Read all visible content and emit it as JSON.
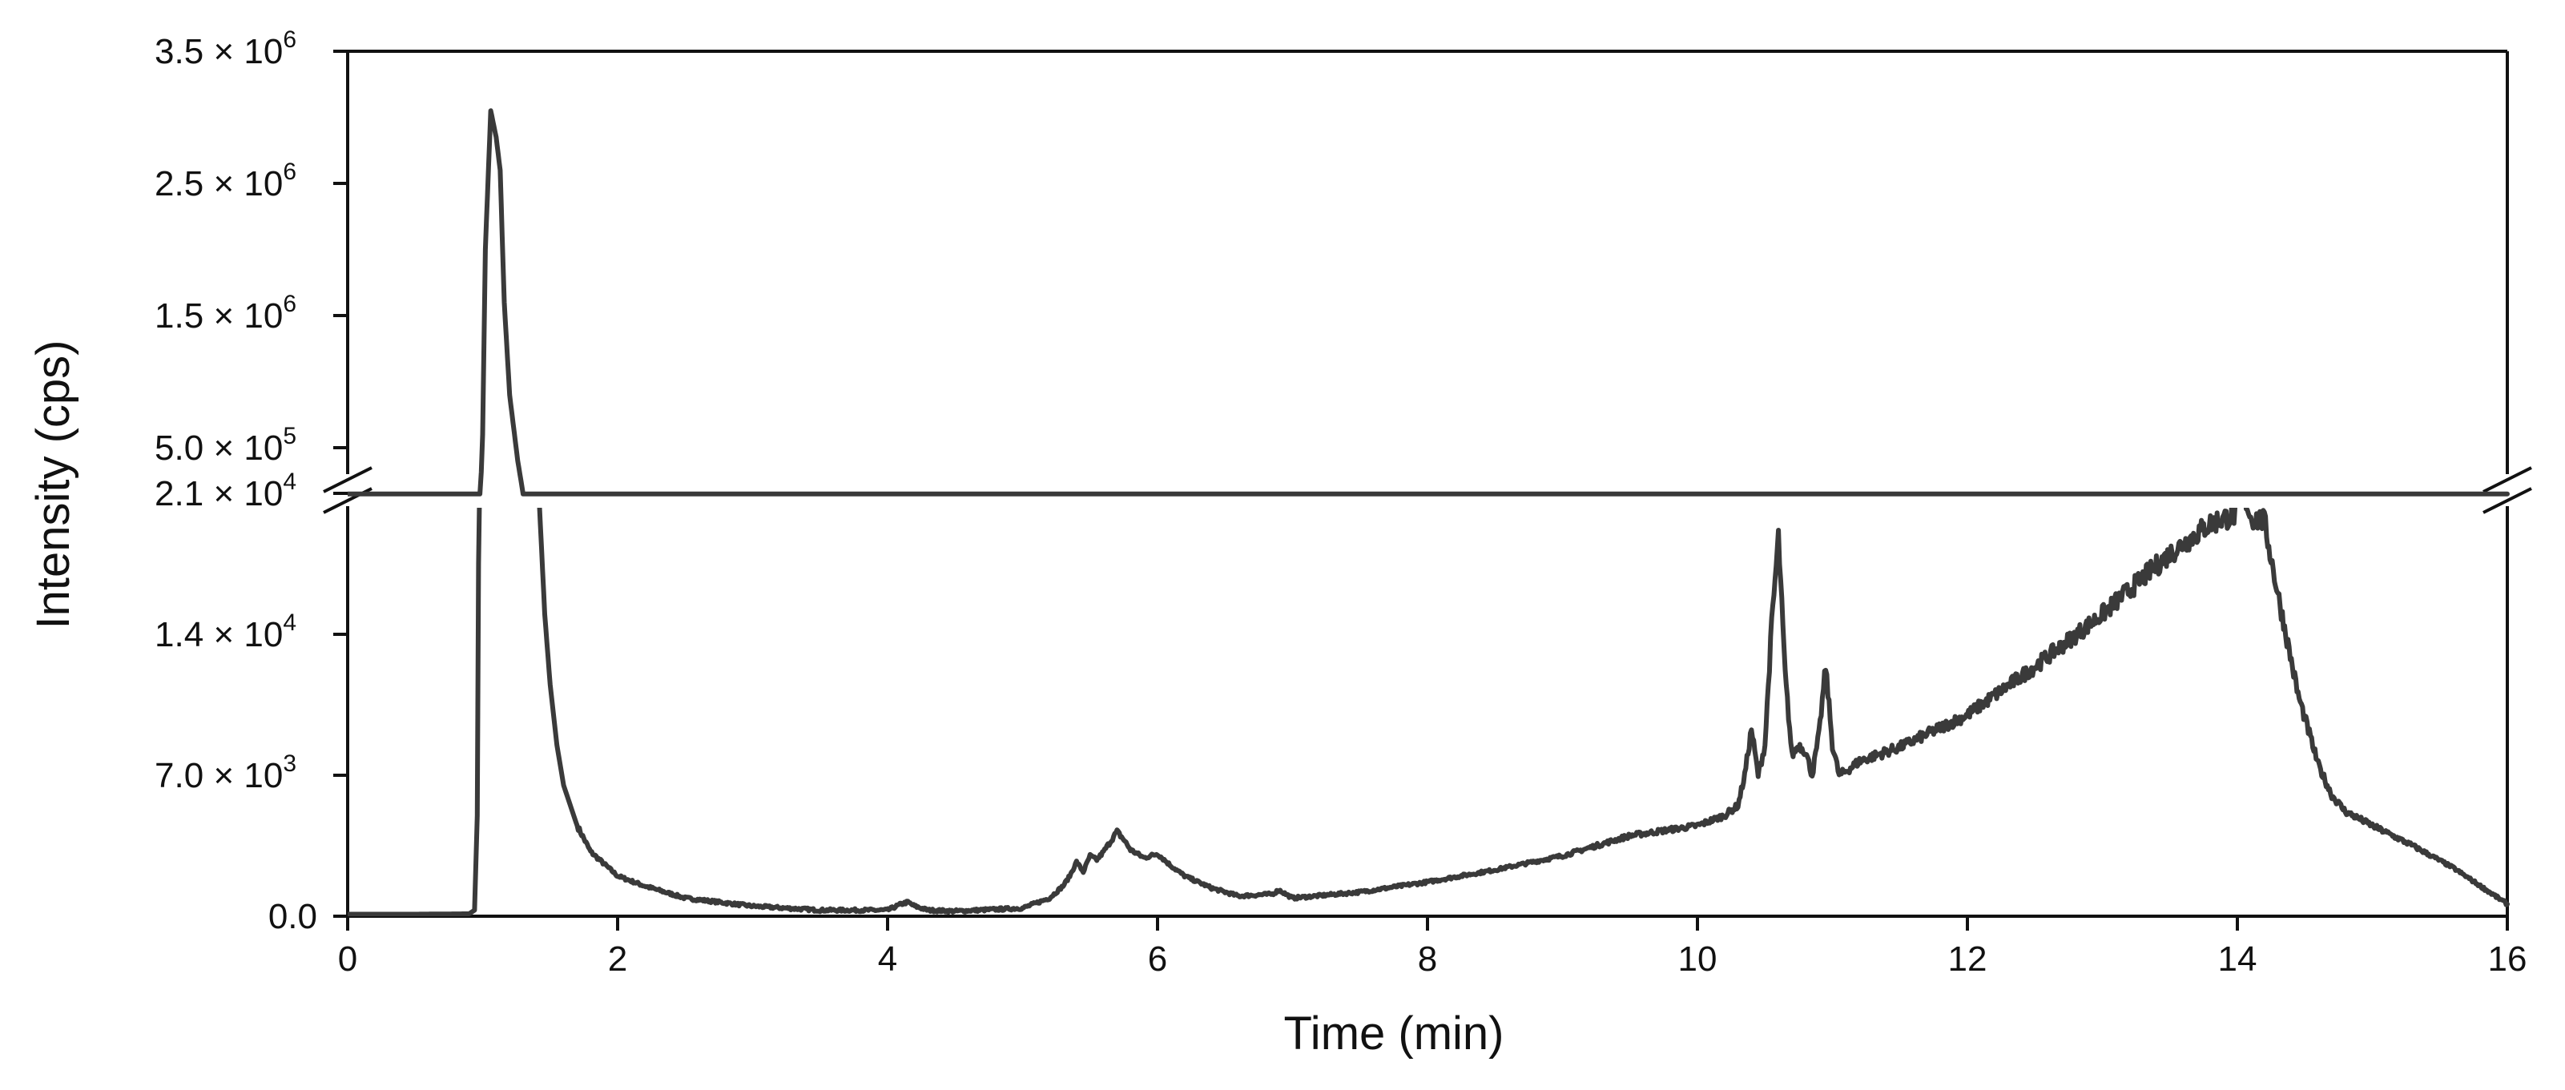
{
  "chart_data": {
    "type": "line",
    "title": "",
    "xlabel": "Time (min)",
    "ylabel": "Intensity (cps)",
    "xlim": [
      0,
      16
    ],
    "x_ticks": [
      "0",
      "2",
      "4",
      "6",
      "8",
      "10",
      "12",
      "14",
      "16"
    ],
    "y_axis_break": true,
    "y_upper": {
      "range": [
        300000,
        3500000
      ],
      "ticks": [
        {
          "value": 500000,
          "mantissa": "5.0",
          "exponent": "5"
        },
        {
          "value": 1500000,
          "mantissa": "1.5",
          "exponent": "6"
        },
        {
          "value": 2500000,
          "mantissa": "2.5",
          "exponent": "6"
        },
        {
          "value": 3500000,
          "mantissa": "3.5",
          "exponent": "6"
        }
      ]
    },
    "y_lower": {
      "range": [
        0,
        21000
      ],
      "ticks": [
        {
          "value": 0,
          "mantissa": "0.0",
          "exponent": ""
        },
        {
          "value": 7000,
          "mantissa": "7.0",
          "exponent": "3"
        },
        {
          "value": 14000,
          "mantissa": "1.4",
          "exponent": "4"
        },
        {
          "value": 21000,
          "mantissa": "2.1",
          "exponent": "4"
        }
      ]
    },
    "grid": false,
    "line_color": "#3a3a3a",
    "series": [
      {
        "x": [
          0,
          0.5,
          0.9,
          0.94,
          0.96,
          0.98,
          1.0,
          1.02,
          1.06,
          1.1,
          1.13,
          1.16,
          1.2,
          1.26,
          1.3,
          1.34,
          1.38,
          1.42,
          1.46,
          1.5,
          1.55,
          1.6,
          1.7,
          1.8,
          2.0,
          2.2,
          2.5,
          3.0,
          3.5,
          4.0,
          4.1,
          4.15,
          4.2,
          4.3,
          4.5,
          5.0,
          5.2,
          5.3,
          5.35,
          5.4,
          5.45,
          5.5,
          5.55,
          5.6,
          5.7,
          5.75,
          5.8,
          5.9,
          6.0,
          6.1,
          6.2,
          6.4,
          6.6,
          6.85,
          6.9,
          7.0,
          7.5,
          8.0,
          8.5,
          9.0,
          9.5,
          10.0,
          10.2,
          10.3,
          10.35,
          10.4,
          10.45,
          10.5,
          10.55,
          10.6,
          10.65,
          10.7,
          10.75,
          10.8,
          10.85,
          10.9,
          10.95,
          11.0,
          11.05,
          11.1,
          11.2,
          11.5,
          12.0,
          12.5,
          13.0,
          13.5,
          13.8,
          14.0,
          14.03,
          14.1,
          14.2,
          14.3,
          14.45,
          14.6,
          14.7,
          14.8,
          15.0,
          15.3,
          15.6,
          16.0
        ],
        "y": [
          100,
          100,
          120,
          300,
          5000,
          30000,
          600000,
          2000000,
          3050000,
          2850000,
          2600000,
          1600000,
          900000,
          400000,
          150000,
          60000,
          30000,
          20500,
          15000,
          11500,
          8500,
          6500,
          4500,
          3200,
          2000,
          1500,
          900,
          500,
          300,
          300,
          600,
          700,
          500,
          300,
          250,
          400,
          900,
          1500,
          2000,
          2700,
          2200,
          3000,
          2800,
          3200,
          4200,
          3800,
          3300,
          2900,
          3100,
          2500,
          2000,
          1400,
          1000,
          1100,
          1300,
          900,
          1200,
          1700,
          2300,
          3000,
          4000,
          4500,
          5000,
          5500,
          7000,
          9300,
          7000,
          8500,
          14500,
          18800,
          12000,
          8000,
          8500,
          8200,
          7000,
          9000,
          12400,
          8500,
          7000,
          7200,
          7700,
          8400,
          10000,
          12400,
          15000,
          18000,
          19500,
          20000,
          21500,
          19800,
          19600,
          16000,
          11000,
          7500,
          6000,
          5200,
          4500,
          3500,
          2400,
          600
        ]
      }
    ]
  }
}
